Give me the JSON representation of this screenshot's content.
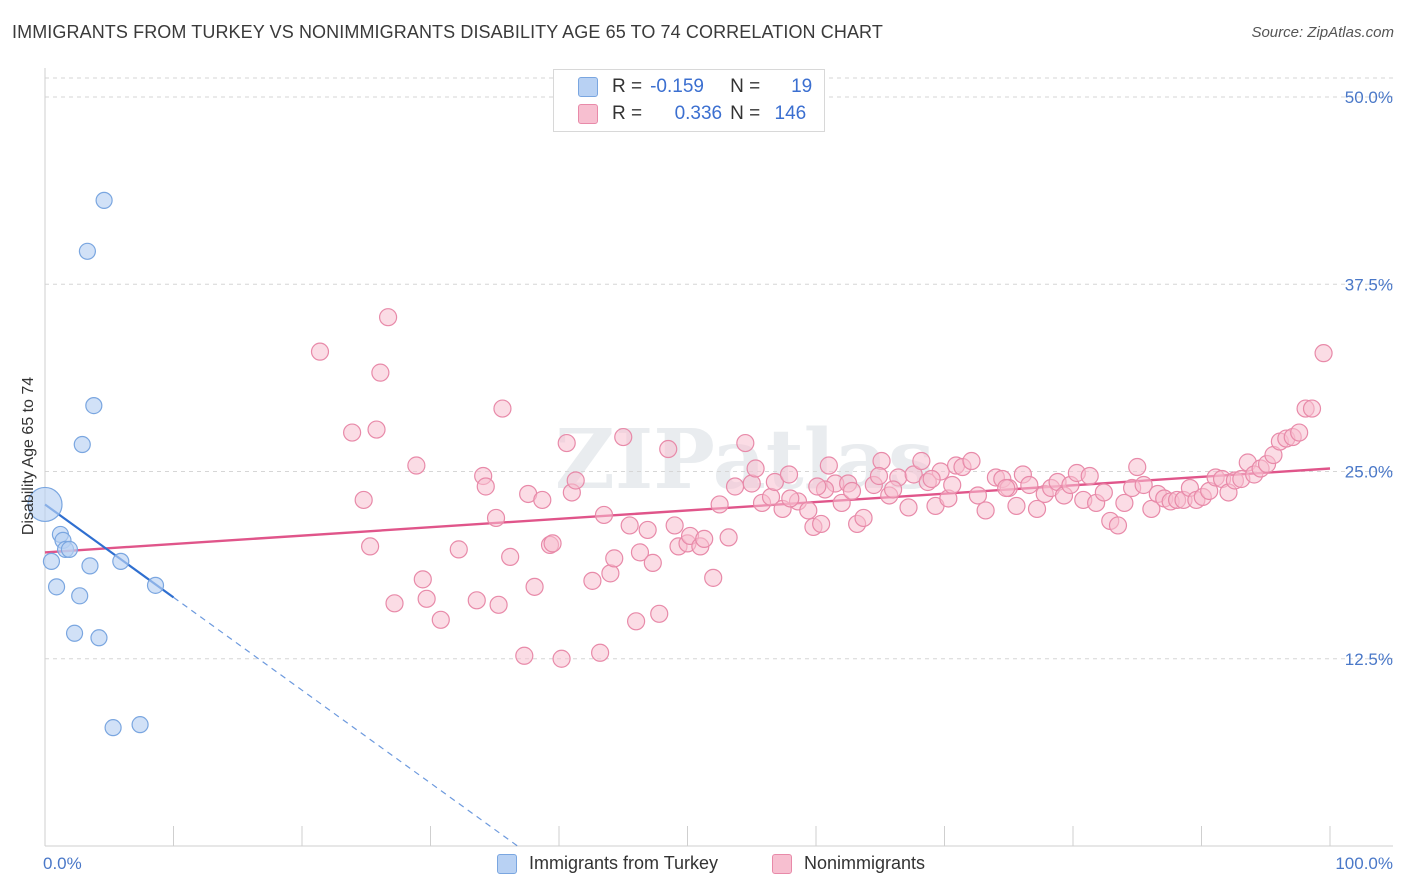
{
  "title": "IMMIGRANTS FROM TURKEY VS NONIMMIGRANTS DISABILITY AGE 65 TO 74 CORRELATION CHART",
  "source": "Source: ZipAtlas.com",
  "watermark": "ZIPatlas",
  "colors": {
    "blue_fill": "#b8d1f3",
    "blue_stroke": "#7aa6e0",
    "blue_line": "#2f6fd0",
    "pink_fill": "#f7bfd0",
    "pink_stroke": "#e88aa9",
    "pink_line": "#e0558a",
    "grid": "#d6d6d6",
    "axis_label": "#4a78c8"
  },
  "legend": {
    "rows": [
      {
        "r_label": "R =",
        "r_value": "-0.159",
        "n_label": "N =",
        "n_value": "19",
        "series": "blue"
      },
      {
        "r_label": "R =",
        "r_value": "0.336",
        "n_label": "N =",
        "n_value": "146",
        "series": "pink"
      }
    ]
  },
  "bottom_legend": {
    "items": [
      {
        "label": "Immigrants from Turkey",
        "series": "blue"
      },
      {
        "label": "Nonimmigrants",
        "series": "pink"
      }
    ]
  },
  "chart_data": {
    "type": "scatter",
    "title": "IMMIGRANTS FROM TURKEY VS NONIMMIGRANTS DISABILITY AGE 65 TO 74 CORRELATION CHART",
    "xlabel": "",
    "ylabel": "Disability Age 65 to 74",
    "xlim": [
      0,
      100
    ],
    "ylim": [
      0,
      51
    ],
    "y_ticks": [
      12.5,
      25.0,
      37.5,
      50.0
    ],
    "y_tick_labels": [
      "12.5%",
      "25.0%",
      "37.5%",
      "50.0%"
    ],
    "x_tick_labels": [
      "0.0%",
      "100.0%"
    ],
    "grid": true,
    "legend_position": "top-center",
    "series": [
      {
        "name": "Immigrants from Turkey",
        "color": "blue",
        "R": -0.159,
        "N": 19,
        "trend": {
          "x0": 0,
          "y0": 22.8,
          "x1": 10,
          "y1": 16.6,
          "dashed_to_x": 37
        },
        "points": [
          {
            "x": 0.0,
            "y": 22.8,
            "big": true
          },
          {
            "x": 0.5,
            "y": 19.0
          },
          {
            "x": 0.9,
            "y": 17.3
          },
          {
            "x": 1.2,
            "y": 20.8
          },
          {
            "x": 1.4,
            "y": 20.4
          },
          {
            "x": 1.6,
            "y": 19.8
          },
          {
            "x": 1.9,
            "y": 19.8
          },
          {
            "x": 2.3,
            "y": 14.2
          },
          {
            "x": 2.7,
            "y": 16.7
          },
          {
            "x": 2.9,
            "y": 26.8
          },
          {
            "x": 3.3,
            "y": 39.7
          },
          {
            "x": 3.5,
            "y": 18.7
          },
          {
            "x": 3.8,
            "y": 29.4
          },
          {
            "x": 4.2,
            "y": 13.9
          },
          {
            "x": 4.6,
            "y": 43.1
          },
          {
            "x": 5.3,
            "y": 7.9
          },
          {
            "x": 5.9,
            "y": 19.0
          },
          {
            "x": 7.4,
            "y": 8.1
          },
          {
            "x": 8.6,
            "y": 17.4
          }
        ]
      },
      {
        "name": "Nonimmigrants",
        "color": "pink",
        "R": 0.336,
        "N": 146,
        "trend": {
          "x0": 0,
          "y0": 19.6,
          "x1": 100,
          "y1": 25.2
        },
        "points": [
          {
            "x": 21.4,
            "y": 33.0
          },
          {
            "x": 23.9,
            "y": 27.6
          },
          {
            "x": 24.8,
            "y": 23.1
          },
          {
            "x": 25.3,
            "y": 20.0
          },
          {
            "x": 25.8,
            "y": 27.8
          },
          {
            "x": 26.1,
            "y": 31.6
          },
          {
            "x": 26.7,
            "y": 35.3
          },
          {
            "x": 27.2,
            "y": 16.2
          },
          {
            "x": 28.9,
            "y": 25.4
          },
          {
            "x": 29.4,
            "y": 17.8
          },
          {
            "x": 29.7,
            "y": 16.5
          },
          {
            "x": 30.8,
            "y": 15.1
          },
          {
            "x": 32.2,
            "y": 19.8
          },
          {
            "x": 33.6,
            "y": 16.4
          },
          {
            "x": 34.1,
            "y": 24.7
          },
          {
            "x": 34.3,
            "y": 24.0
          },
          {
            "x": 35.1,
            "y": 21.9
          },
          {
            "x": 35.3,
            "y": 16.1
          },
          {
            "x": 35.6,
            "y": 29.2
          },
          {
            "x": 36.2,
            "y": 19.3
          },
          {
            "x": 37.3,
            "y": 12.7
          },
          {
            "x": 37.6,
            "y": 23.5
          },
          {
            "x": 38.1,
            "y": 17.3
          },
          {
            "x": 38.7,
            "y": 23.1
          },
          {
            "x": 39.3,
            "y": 20.1
          },
          {
            "x": 39.5,
            "y": 20.2
          },
          {
            "x": 40.2,
            "y": 12.5
          },
          {
            "x": 40.6,
            "y": 26.9
          },
          {
            "x": 41.0,
            "y": 23.6
          },
          {
            "x": 41.3,
            "y": 24.4
          },
          {
            "x": 42.6,
            "y": 17.7
          },
          {
            "x": 43.2,
            "y": 12.9
          },
          {
            "x": 43.5,
            "y": 22.1
          },
          {
            "x": 44.0,
            "y": 18.2
          },
          {
            "x": 44.3,
            "y": 19.2
          },
          {
            "x": 45.0,
            "y": 27.3
          },
          {
            "x": 45.5,
            "y": 21.4
          },
          {
            "x": 46.0,
            "y": 15.0
          },
          {
            "x": 46.3,
            "y": 19.6
          },
          {
            "x": 46.9,
            "y": 21.1
          },
          {
            "x": 47.3,
            "y": 18.9
          },
          {
            "x": 47.8,
            "y": 15.5
          },
          {
            "x": 48.5,
            "y": 26.5
          },
          {
            "x": 49.0,
            "y": 21.4
          },
          {
            "x": 49.3,
            "y": 20.0
          },
          {
            "x": 50.0,
            "y": 20.2
          },
          {
            "x": 50.2,
            "y": 20.7
          },
          {
            "x": 51.0,
            "y": 20.0
          },
          {
            "x": 51.3,
            "y": 20.5
          },
          {
            "x": 52.0,
            "y": 17.9
          },
          {
            "x": 52.5,
            "y": 22.8
          },
          {
            "x": 53.2,
            "y": 20.6
          },
          {
            "x": 53.7,
            "y": 24.0
          },
          {
            "x": 54.5,
            "y": 26.9
          },
          {
            "x": 55.0,
            "y": 24.2
          },
          {
            "x": 55.8,
            "y": 22.9
          },
          {
            "x": 56.5,
            "y": 23.3
          },
          {
            "x": 56.8,
            "y": 24.3
          },
          {
            "x": 57.4,
            "y": 22.5
          },
          {
            "x": 57.9,
            "y": 24.8
          },
          {
            "x": 58.6,
            "y": 23.0
          },
          {
            "x": 59.4,
            "y": 22.4
          },
          {
            "x": 59.8,
            "y": 21.3
          },
          {
            "x": 60.4,
            "y": 21.5
          },
          {
            "x": 61.0,
            "y": 25.4
          },
          {
            "x": 61.5,
            "y": 24.2
          },
          {
            "x": 62.0,
            "y": 22.9
          },
          {
            "x": 62.5,
            "y": 24.2
          },
          {
            "x": 63.2,
            "y": 21.5
          },
          {
            "x": 63.7,
            "y": 21.9
          },
          {
            "x": 64.5,
            "y": 24.1
          },
          {
            "x": 65.1,
            "y": 25.7
          },
          {
            "x": 65.7,
            "y": 23.4
          },
          {
            "x": 66.4,
            "y": 24.6
          },
          {
            "x": 67.2,
            "y": 22.6
          },
          {
            "x": 67.6,
            "y": 24.8
          },
          {
            "x": 68.2,
            "y": 25.7
          },
          {
            "x": 68.7,
            "y": 24.3
          },
          {
            "x": 69.3,
            "y": 22.7
          },
          {
            "x": 69.7,
            "y": 25.0
          },
          {
            "x": 70.3,
            "y": 23.2
          },
          {
            "x": 70.9,
            "y": 25.4
          },
          {
            "x": 71.4,
            "y": 25.3
          },
          {
            "x": 72.1,
            "y": 25.7
          },
          {
            "x": 72.6,
            "y": 23.4
          },
          {
            "x": 73.2,
            "y": 22.4
          },
          {
            "x": 74.0,
            "y": 24.6
          },
          {
            "x": 74.5,
            "y": 24.5
          },
          {
            "x": 75.0,
            "y": 23.9
          },
          {
            "x": 75.6,
            "y": 22.7
          },
          {
            "x": 76.1,
            "y": 24.8
          },
          {
            "x": 76.6,
            "y": 24.1
          },
          {
            "x": 77.2,
            "y": 22.5
          },
          {
            "x": 77.8,
            "y": 23.5
          },
          {
            "x": 78.3,
            "y": 23.9
          },
          {
            "x": 78.8,
            "y": 24.3
          },
          {
            "x": 79.3,
            "y": 23.4
          },
          {
            "x": 79.8,
            "y": 24.1
          },
          {
            "x": 80.3,
            "y": 24.9
          },
          {
            "x": 80.8,
            "y": 23.1
          },
          {
            "x": 81.3,
            "y": 24.7
          },
          {
            "x": 81.8,
            "y": 22.9
          },
          {
            "x": 82.4,
            "y": 23.6
          },
          {
            "x": 82.9,
            "y": 21.7
          },
          {
            "x": 83.5,
            "y": 21.4
          },
          {
            "x": 84.0,
            "y": 22.9
          },
          {
            "x": 84.6,
            "y": 23.9
          },
          {
            "x": 85.0,
            "y": 25.3
          },
          {
            "x": 85.5,
            "y": 24.1
          },
          {
            "x": 86.1,
            "y": 22.5
          },
          {
            "x": 86.6,
            "y": 23.5
          },
          {
            "x": 87.1,
            "y": 23.2
          },
          {
            "x": 87.6,
            "y": 23.0
          },
          {
            "x": 88.1,
            "y": 23.1
          },
          {
            "x": 88.6,
            "y": 23.1
          },
          {
            "x": 89.1,
            "y": 23.9
          },
          {
            "x": 89.6,
            "y": 23.1
          },
          {
            "x": 90.1,
            "y": 23.3
          },
          {
            "x": 90.6,
            "y": 23.7
          },
          {
            "x": 91.1,
            "y": 24.6
          },
          {
            "x": 91.6,
            "y": 24.5
          },
          {
            "x": 92.1,
            "y": 23.6
          },
          {
            "x": 92.6,
            "y": 24.4
          },
          {
            "x": 93.1,
            "y": 24.5
          },
          {
            "x": 93.6,
            "y": 25.6
          },
          {
            "x": 94.1,
            "y": 24.8
          },
          {
            "x": 94.6,
            "y": 25.2
          },
          {
            "x": 95.1,
            "y": 25.5
          },
          {
            "x": 95.6,
            "y": 26.1
          },
          {
            "x": 96.1,
            "y": 27.0
          },
          {
            "x": 96.6,
            "y": 27.2
          },
          {
            "x": 97.1,
            "y": 27.3
          },
          {
            "x": 97.6,
            "y": 27.6
          },
          {
            "x": 98.1,
            "y": 29.2
          },
          {
            "x": 98.6,
            "y": 29.2
          },
          {
            "x": 99.5,
            "y": 32.9
          },
          {
            "x": 64.9,
            "y": 24.7
          },
          {
            "x": 66.0,
            "y": 23.8
          },
          {
            "x": 70.6,
            "y": 24.1
          },
          {
            "x": 74.8,
            "y": 23.9
          },
          {
            "x": 69.0,
            "y": 24.5
          },
          {
            "x": 58.0,
            "y": 23.2
          },
          {
            "x": 60.7,
            "y": 23.8
          },
          {
            "x": 62.8,
            "y": 23.7
          },
          {
            "x": 55.3,
            "y": 25.2
          },
          {
            "x": 60.1,
            "y": 24.0
          }
        ]
      }
    ]
  }
}
